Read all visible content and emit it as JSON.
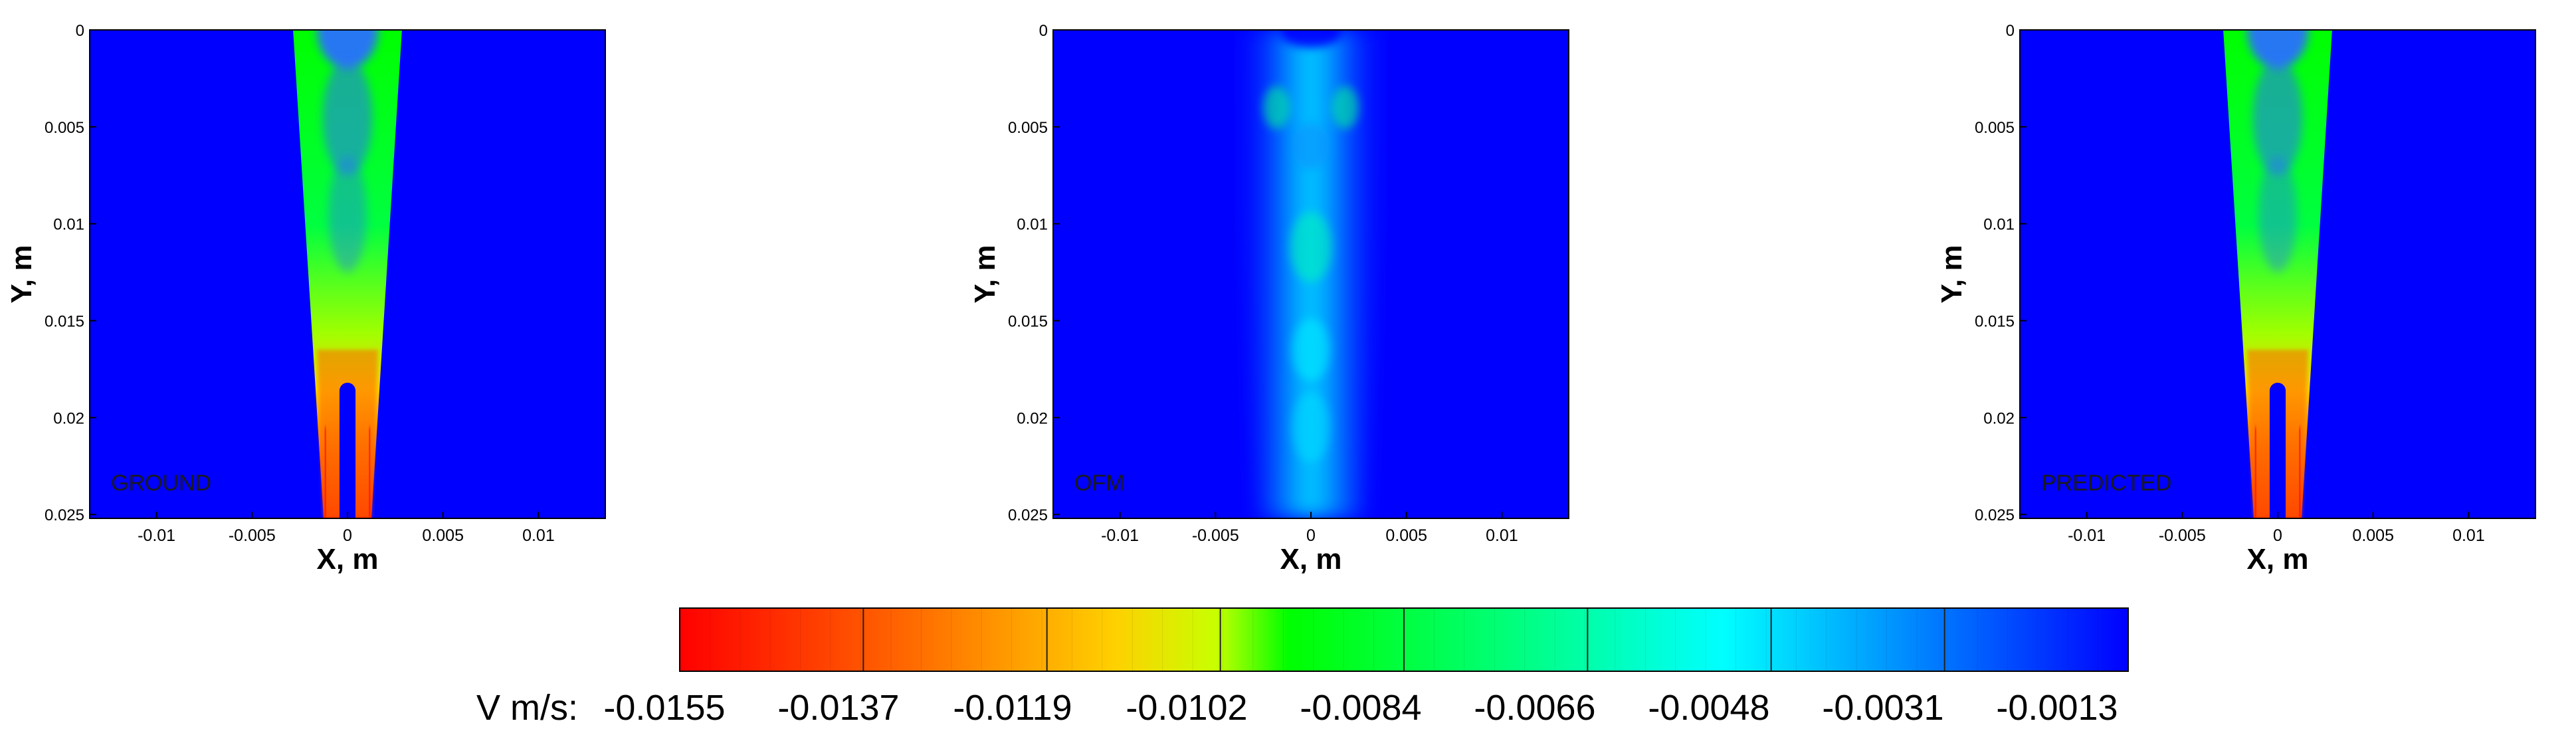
{
  "chart_data": {
    "type": "heatmap",
    "panels": [
      {
        "label": "GROUND",
        "xlabel": "X, m",
        "ylabel": "Y, m",
        "xlim": [
          -0.0135,
          0.0135
        ],
        "ylim": [
          0,
          0.0252
        ],
        "y_inverted": true,
        "x_ticks": [
          "-0.01",
          "-0.005",
          "0",
          "0.005",
          "0.01"
        ],
        "y_ticks": [
          "0",
          "0.005",
          "0.01",
          "0.015",
          "0.02",
          "0.025"
        ]
      },
      {
        "label": "OFM",
        "xlabel": "X, m",
        "ylabel": "Y, m",
        "xlim": [
          -0.0135,
          0.0135
        ],
        "ylim": [
          0,
          0.0252
        ],
        "y_inverted": true,
        "x_ticks": [
          "-0.01",
          "-0.005",
          "0",
          "0.005",
          "0.01"
        ],
        "y_ticks": [
          "0",
          "0.005",
          "0.01",
          "0.015",
          "0.02",
          "0.025"
        ]
      },
      {
        "label": "PREDICTED",
        "xlabel": "X, m",
        "ylabel": "Y, m",
        "xlim": [
          -0.0135,
          0.0135
        ],
        "ylim": [
          0,
          0.0252
        ],
        "y_inverted": true,
        "x_ticks": [
          "-0.01",
          "-0.005",
          "0",
          "0.005",
          "0.01"
        ],
        "y_ticks": [
          "0",
          "0.005",
          "0.01",
          "0.015",
          "0.02",
          "0.025"
        ]
      }
    ],
    "colorbar": {
      "title": "V m/s:",
      "labels": [
        "-0.0155",
        "-0.0137",
        "-0.0119",
        "-0.0102",
        "-0.0084",
        "-0.0066",
        "-0.0048",
        "-0.0031",
        "-0.0013"
      ],
      "min": -0.0155,
      "max": -0.0013,
      "colors": [
        "#ff0000",
        "#ff8000",
        "#ffff00",
        "#00ff00",
        "#00ff80",
        "#00ffff",
        "#0080ff",
        "#0000ff"
      ]
    }
  }
}
